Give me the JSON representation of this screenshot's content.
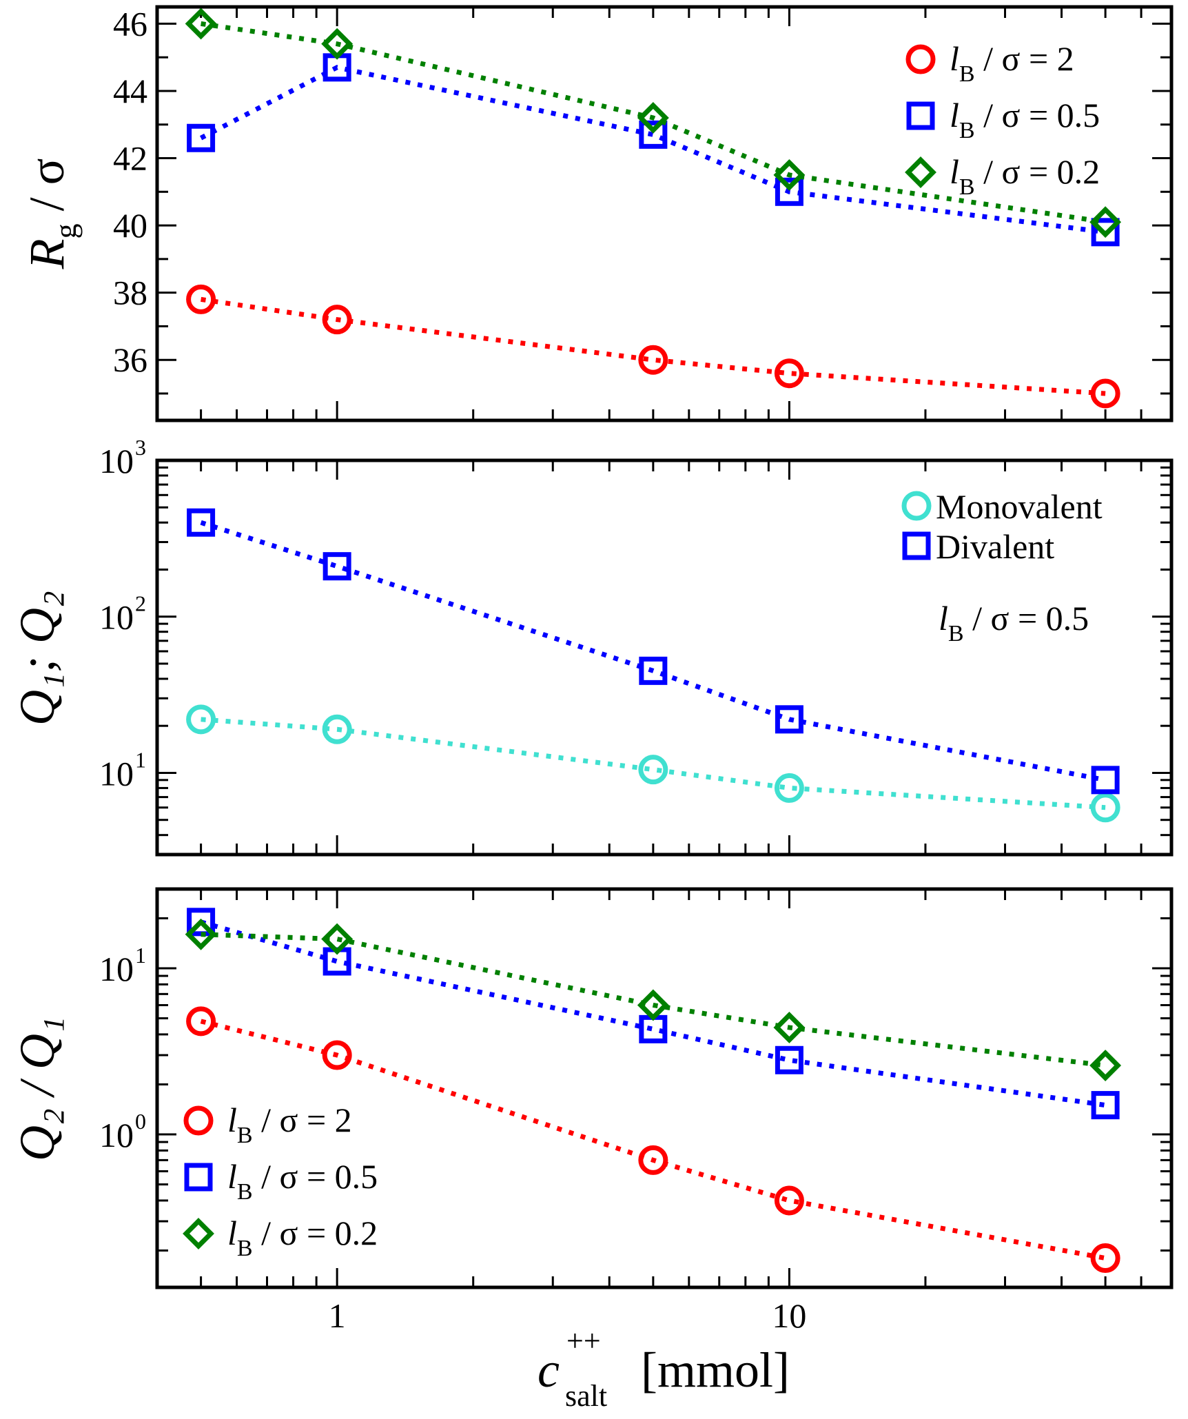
{
  "chart_data": [
    {
      "type": "scatter",
      "panel": "top",
      "ylabel": "R",
      "ylabel_sub": "g",
      "ylabel_tail": " / σ",
      "xscale": "log",
      "xlim": [
        0.4,
        70
      ],
      "ylim": [
        34.2,
        46.5
      ],
      "yticks": [
        36,
        38,
        40,
        42,
        44,
        46
      ],
      "legend_position": "top-right",
      "series": [
        {
          "name": "lB/σ = 2",
          "marker": "circle",
          "color": "#ff0000",
          "legend": {
            "sym": "l",
            "sub": "B",
            "rest": " / σ = 2"
          },
          "x": [
            0.5,
            1,
            5,
            10,
            50
          ],
          "y": [
            37.8,
            37.2,
            36.0,
            35.6,
            35.0
          ]
        },
        {
          "name": "lB/σ = 0.5",
          "marker": "square",
          "color": "#0000ff",
          "legend": {
            "sym": "l",
            "sub": "B",
            "rest": " / σ = 0.5"
          },
          "x": [
            0.5,
            1,
            5,
            10,
            50
          ],
          "y": [
            42.6,
            44.7,
            42.7,
            41.0,
            39.8
          ]
        },
        {
          "name": "lB/σ = 0.2",
          "marker": "diamond",
          "color": "#008000",
          "legend": {
            "sym": "l",
            "sub": "B",
            "rest": " / σ = 0.2"
          },
          "x": [
            0.5,
            1,
            5,
            10,
            50
          ],
          "y": [
            46.0,
            45.4,
            43.2,
            41.5,
            40.1
          ]
        }
      ]
    },
    {
      "type": "scatter",
      "panel": "middle",
      "ylabel": "Q₁; Q₂",
      "xscale": "log",
      "yscale": "log",
      "xlim": [
        0.4,
        70
      ],
      "ylim": [
        3,
        1000
      ],
      "yticks": [
        10,
        100,
        1000
      ],
      "yticklabels": [
        {
          "base": "10",
          "exp": "1"
        },
        {
          "base": "10",
          "exp": "2"
        },
        {
          "base": "10",
          "exp": "3"
        }
      ],
      "legend_position": "top-right",
      "annotation": {
        "sym": "l",
        "sub": "B",
        "rest": " / σ = 0.5"
      },
      "series": [
        {
          "name": "Monovalent",
          "marker": "circle",
          "color": "#40e0d0",
          "x": [
            0.5,
            1,
            5,
            10,
            50
          ],
          "y": [
            22,
            19,
            10.5,
            8,
            6
          ]
        },
        {
          "name": "Divalent",
          "marker": "square",
          "color": "#0000ff",
          "x": [
            0.5,
            1,
            5,
            10,
            50
          ],
          "y": [
            400,
            210,
            45,
            22,
            9
          ]
        }
      ]
    },
    {
      "type": "scatter",
      "panel": "bottom",
      "ylabel": "Q₂ / Q₁",
      "xscale": "log",
      "yscale": "log",
      "xlim": [
        0.4,
        70
      ],
      "ylim": [
        0.12,
        30
      ],
      "xticks": [
        1,
        10
      ],
      "xticklabels": [
        "1",
        "10"
      ],
      "yticks": [
        1,
        10
      ],
      "yticklabels": [
        {
          "base": "10",
          "exp": "0"
        },
        {
          "base": "10",
          "exp": "1"
        }
      ],
      "xlabel": "c",
      "xlabel_sup": "++",
      "xlabel_sub": "salt",
      "xlabel_tail": "[mmol]",
      "legend_position": "bottom-left",
      "series": [
        {
          "name": "lB/σ = 2",
          "marker": "circle",
          "color": "#ff0000",
          "legend": {
            "sym": "l",
            "sub": "B",
            "rest": " / σ = 2"
          },
          "x": [
            0.5,
            1,
            5,
            10,
            50
          ],
          "y": [
            4.8,
            3.0,
            0.7,
            0.4,
            0.18
          ]
        },
        {
          "name": "lB/σ = 0.5",
          "marker": "square",
          "color": "#0000ff",
          "legend": {
            "sym": "l",
            "sub": "B",
            "rest": " / σ = 0.5"
          },
          "x": [
            0.5,
            1,
            5,
            10,
            50
          ],
          "y": [
            19,
            11,
            4.3,
            2.8,
            1.5
          ]
        },
        {
          "name": "lB/σ = 0.2",
          "marker": "diamond",
          "color": "#008000",
          "legend": {
            "sym": "l",
            "sub": "B",
            "rest": " / σ = 0.2"
          },
          "x": [
            0.5,
            1,
            5,
            10,
            50
          ],
          "y": [
            16,
            15,
            6.0,
            4.4,
            2.6
          ]
        }
      ]
    }
  ],
  "shared_labels": {
    "top_ylabel_main": "R",
    "top_ylabel_sub": "g",
    "top_ylabel_tail": " / σ",
    "mid_ylabel_text": "Q₁; Q₂",
    "bot_ylabel_text": "Q₂ / Q₁"
  }
}
